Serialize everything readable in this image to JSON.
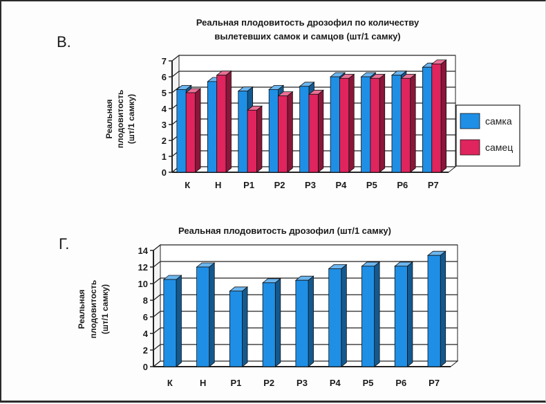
{
  "colors": {
    "female": "#1f8fe6",
    "male": "#e0245e",
    "grid": "#222222"
  },
  "chart_data": [
    {
      "panel": "В.",
      "type": "bar",
      "title": [
        "Реальная плодовитость дрозофил по количеству",
        "вылетевших самок и самцов (шт/1 самку)"
      ],
      "ylabel": [
        "Реальная",
        "плодовитость",
        "(шт/1 самку)"
      ],
      "categories": [
        "К",
        "Н",
        "Р1",
        "Р2",
        "Р3",
        "Р4",
        "Р5",
        "Р6",
        "Р7"
      ],
      "ylim": [
        0,
        7
      ],
      "yticks": [
        "0",
        "1",
        "2",
        "3",
        "4",
        "5",
        "6",
        "7"
      ],
      "series": [
        {
          "name": "самка",
          "values": [
            5.2,
            5.7,
            5.1,
            5.2,
            5.4,
            6.0,
            6.0,
            6.1,
            6.6
          ]
        },
        {
          "name": "самец",
          "values": [
            5.0,
            6.1,
            3.9,
            4.8,
            4.9,
            5.9,
            5.9,
            5.9,
            6.8
          ]
        }
      ],
      "legend": "right",
      "grid": true
    },
    {
      "panel": "Г.",
      "type": "bar",
      "title": [
        "Реальная плодовитость дрозофил (шт/1 самку)"
      ],
      "ylabel": [
        "Реальная",
        "плодовитость",
        "(шт/1 самку)"
      ],
      "categories": [
        "К",
        "Н",
        "Р1",
        "Р2",
        "Р3",
        "Р4",
        "Р5",
        "Р6",
        "Р7"
      ],
      "ylim": [
        0,
        14
      ],
      "yticks": [
        "0",
        "2",
        "4",
        "6",
        "8",
        "10",
        "12",
        "14"
      ],
      "series": [
        {
          "values": [
            10.5,
            12.0,
            9.1,
            10.1,
            10.4,
            11.8,
            12.1,
            12.1,
            13.4
          ]
        }
      ],
      "grid": true
    }
  ]
}
